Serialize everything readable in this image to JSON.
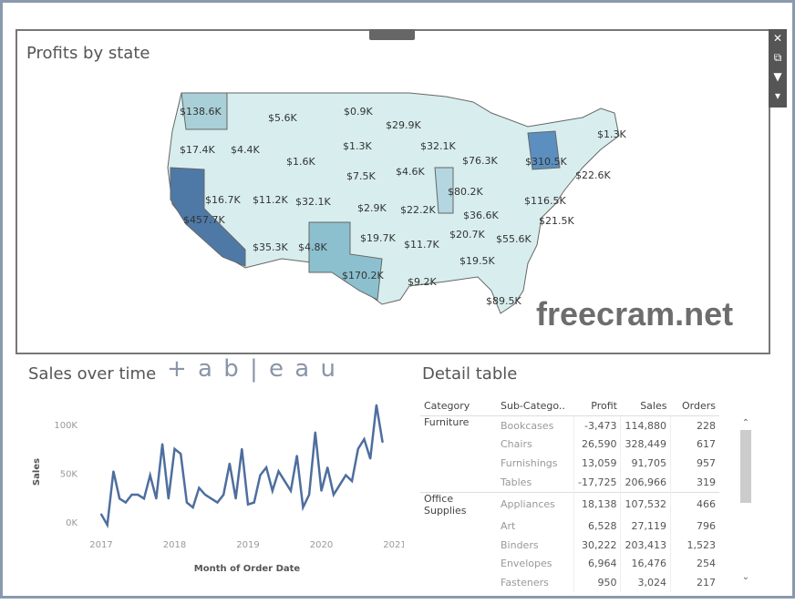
{
  "map": {
    "title": "Profits by state",
    "toolbar": [
      "close-icon",
      "popout-icon",
      "filter-icon",
      "more-icon"
    ],
    "labels": [
      "$138.6K",
      "$5.6K",
      "$0.9K",
      "$29.9K",
      "$17.4K",
      "$4.4K",
      "$1.3K",
      "$32.1K",
      "$76.3K",
      "$1.3K",
      "$1.6K",
      "$7.5K",
      "$4.6K",
      "$310.5K",
      "$22.6K",
      "$16.7K",
      "$11.2K",
      "$32.1K",
      "$2.9K",
      "$22.2K",
      "$80.2K",
      "$116.5K",
      "$457.7K",
      "$36.6K",
      "$21.5K",
      "$35.3K",
      "$4.8K",
      "$19.7K",
      "$11.7K",
      "$20.7K",
      "$55.6K",
      "$19.5K",
      "$170.2K",
      "$9.2K",
      "$89.5K"
    ]
  },
  "logo": "+ a b | e a u",
  "line": {
    "title": "Sales over time",
    "chart_data": {
      "type": "line",
      "xlabel": "Month of Order Date",
      "ylabel": "Sales",
      "x_ticks": [
        "2017",
        "2018",
        "2019",
        "2020",
        "2021"
      ],
      "y_ticks": [
        "0K",
        "50K",
        "100K"
      ],
      "ylim": [
        -10,
        125
      ],
      "unit": "K",
      "values": [
        8,
        -3,
        52,
        24,
        20,
        28,
        28,
        24,
        48,
        24,
        80,
        24,
        75,
        70,
        20,
        15,
        35,
        28,
        24,
        20,
        28,
        60,
        24,
        75,
        18,
        20,
        48,
        56,
        32,
        52,
        42,
        32,
        68,
        15,
        28,
        92,
        32,
        56,
        28,
        38,
        48,
        42,
        75,
        85,
        65,
        120,
        82
      ]
    }
  },
  "table": {
    "title": "Detail table",
    "headers": [
      "Category",
      "Sub-Catego..",
      "Profit",
      "Sales",
      "Orders"
    ],
    "rows": [
      [
        "Furniture",
        "Bookcases",
        "-3,473",
        "114,880",
        "228"
      ],
      [
        "",
        "Chairs",
        "26,590",
        "328,449",
        "617"
      ],
      [
        "",
        "Furnishings",
        "13,059",
        "91,705",
        "957"
      ],
      [
        "",
        "Tables",
        "-17,725",
        "206,966",
        "319"
      ],
      [
        "Office Supplies",
        "Appliances",
        "18,138",
        "107,532",
        "466"
      ],
      [
        "",
        "Art",
        "6,528",
        "27,119",
        "796"
      ],
      [
        "",
        "Binders",
        "30,222",
        "203,413",
        "1,523"
      ],
      [
        "",
        "Envelopes",
        "6,964",
        "16,476",
        "254"
      ],
      [
        "",
        "Fasteners",
        "950",
        "3,024",
        "217"
      ]
    ]
  },
  "watermark": "freecram.net"
}
